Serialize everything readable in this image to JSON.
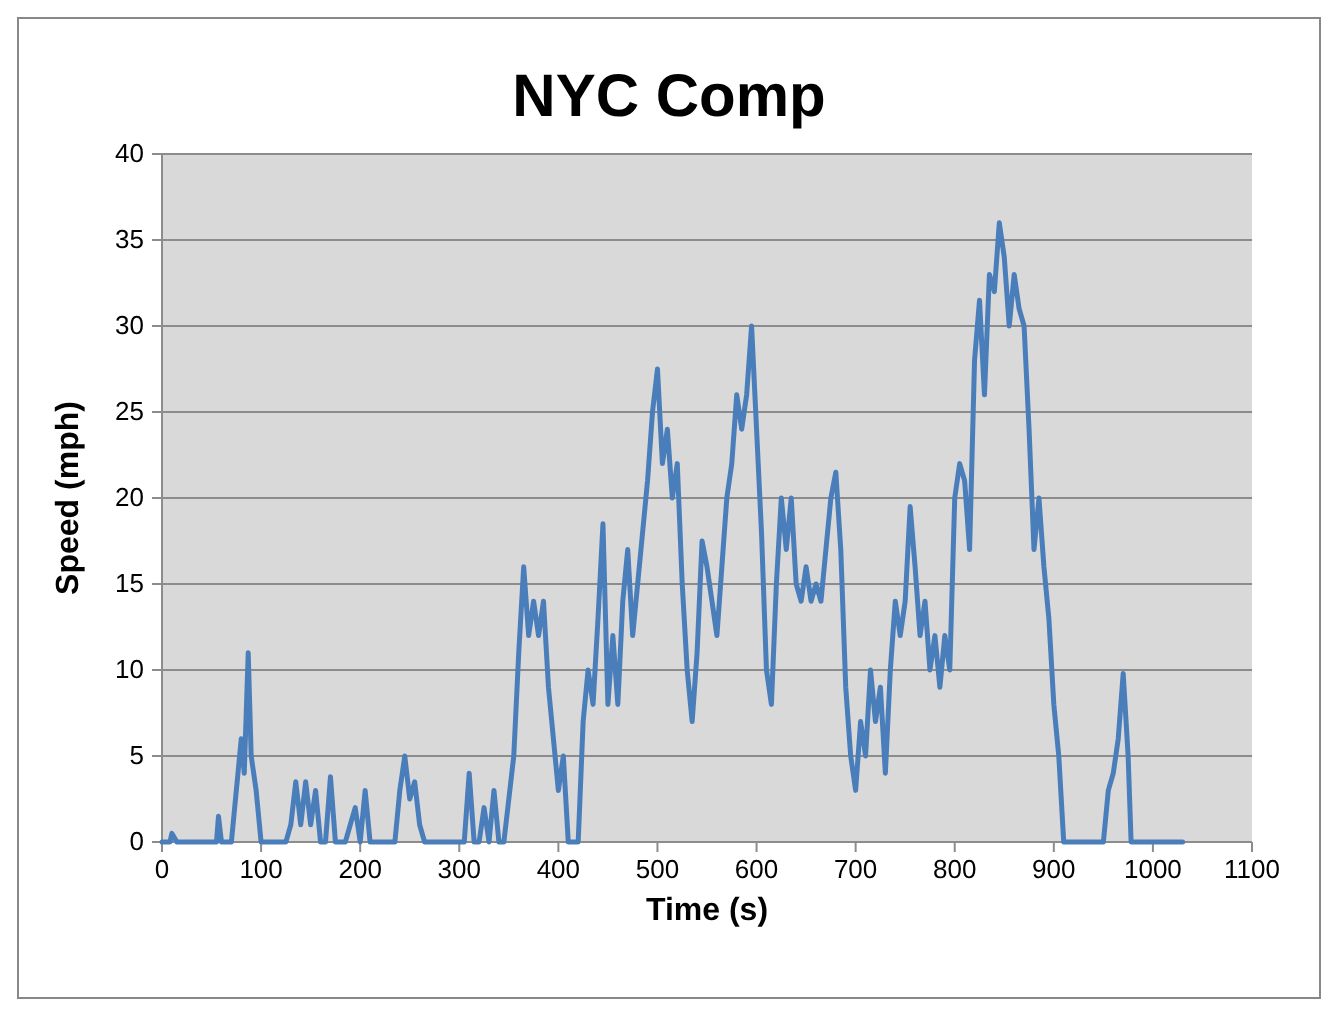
{
  "chart_data": {
    "type": "line",
    "title": "NYC Comp",
    "xlabel": "Time (s)",
    "ylabel": "Speed (mph)",
    "xlim": [
      0,
      1100
    ],
    "xticks": [
      0,
      100,
      200,
      300,
      400,
      500,
      600,
      700,
      800,
      900,
      1000,
      1100
    ],
    "ylim": [
      0,
      40
    ],
    "yticks": [
      0,
      5,
      10,
      15,
      20,
      25,
      30,
      35,
      40
    ],
    "grid": "y",
    "marker": "none",
    "line_style": "solid",
    "series": [
      {
        "color": "#4a7ebb",
        "x": [
          0,
          8,
          10,
          15,
          55,
          57,
          60,
          70,
          75,
          80,
          83,
          87,
          90,
          95,
          100,
          125,
          130,
          135,
          140,
          145,
          150,
          155,
          160,
          165,
          170,
          175,
          185,
          190,
          195,
          200,
          205,
          210,
          235,
          240,
          245,
          250,
          255,
          260,
          265,
          305,
          310,
          315,
          320,
          325,
          330,
          335,
          340,
          345,
          355,
          360,
          365,
          370,
          375,
          380,
          385,
          390,
          395,
          400,
          405,
          410,
          420,
          425,
          430,
          435,
          440,
          445,
          450,
          455,
          460,
          465,
          470,
          475,
          480,
          485,
          490,
          495,
          500,
          505,
          510,
          515,
          520,
          525,
          530,
          535,
          540,
          545,
          550,
          555,
          560,
          565,
          570,
          575,
          580,
          585,
          590,
          595,
          600,
          605,
          610,
          615,
          620,
          625,
          630,
          635,
          640,
          645,
          650,
          655,
          660,
          665,
          670,
          675,
          680,
          685,
          690,
          695,
          700,
          705,
          710,
          715,
          720,
          725,
          730,
          735,
          740,
          745,
          750,
          755,
          760,
          765,
          770,
          775,
          780,
          785,
          790,
          795,
          800,
          805,
          810,
          815,
          820,
          825,
          830,
          835,
          840,
          845,
          850,
          855,
          860,
          865,
          870,
          875,
          880,
          885,
          890,
          895,
          900,
          905,
          910,
          950,
          955,
          960,
          965,
          970,
          975,
          978,
          1030
        ],
        "values": [
          0,
          0,
          0.5,
          0,
          0,
          1.5,
          0,
          0,
          3,
          6,
          4,
          11,
          5,
          3,
          0,
          0,
          1,
          3.5,
          1,
          3.5,
          1,
          3,
          0,
          0,
          3.8,
          0,
          0,
          1,
          2,
          0,
          3,
          0,
          0,
          3,
          5,
          2.5,
          3.5,
          1,
          0,
          0,
          4,
          0,
          0,
          2,
          0,
          3,
          0,
          0,
          5,
          11,
          16,
          12,
          14,
          12,
          14,
          9,
          6,
          3,
          5,
          0,
          0,
          7,
          10,
          8,
          13,
          18.5,
          8,
          12,
          8,
          14,
          17,
          12,
          15,
          18,
          21,
          25,
          27.5,
          22,
          24,
          20,
          22,
          15,
          10,
          7,
          11,
          17.5,
          16,
          14,
          12,
          16,
          20,
          22,
          26,
          24,
          26,
          30,
          24,
          18,
          10,
          8,
          15,
          20,
          17,
          20,
          15,
          14,
          16,
          14,
          15,
          14,
          17,
          20,
          21.5,
          17,
          9,
          5,
          3,
          7,
          5,
          10,
          7,
          9,
          4,
          10,
          14,
          12,
          14,
          19.5,
          16,
          12,
          14,
          10,
          12,
          9,
          12,
          10,
          20,
          22,
          21,
          17,
          28,
          31.5,
          26,
          33,
          32,
          36,
          34,
          30,
          33,
          31,
          30,
          24,
          17,
          20,
          16,
          13,
          8,
          5,
          0,
          0,
          3,
          4,
          6,
          9.8,
          5,
          0,
          0
        ]
      }
    ]
  }
}
